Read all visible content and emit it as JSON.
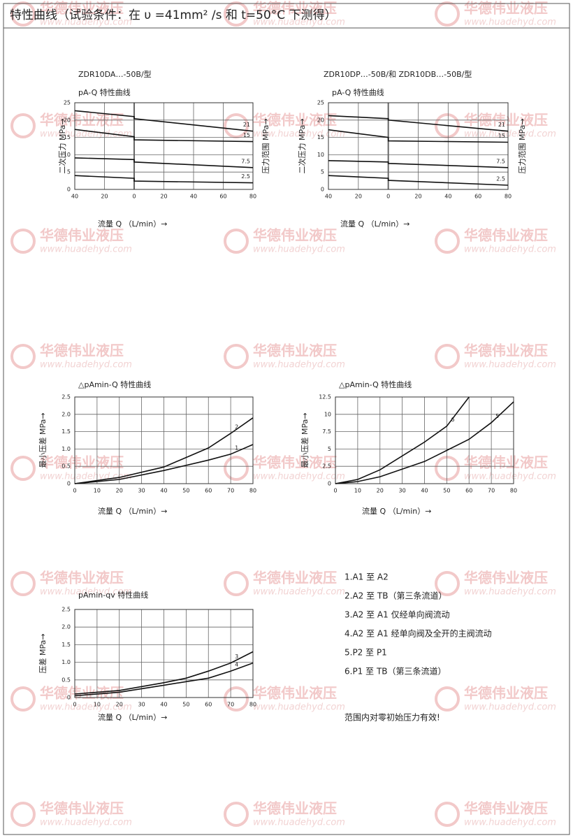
{
  "header": {
    "title": "特性曲线（试验条件：在 υ =41mm² /s 和 t=50°C 下测得）"
  },
  "watermark": {
    "brand": "华德伟业液压",
    "url": "www.huadehyd.com"
  },
  "chart_data": [
    {
      "type": "line",
      "title": "ZDR10DA…-50B/型",
      "subtitle": "pA-Q 特性曲线",
      "x_label": "流量 Q （L/min）→",
      "y_label": "二次压力 MPa→",
      "y2_label": "压力范围 MPa→",
      "x": [
        -40,
        0,
        0,
        80
      ],
      "xlim": [
        -40,
        80
      ],
      "xticks": [
        {
          "value": -40,
          "label": "40"
        },
        {
          "value": -20,
          "label": "20"
        },
        0,
        20,
        40,
        60,
        80
      ],
      "ylim": [
        0,
        25
      ],
      "yticks": [
        0,
        5,
        10,
        15,
        20,
        25
      ],
      "grid": true,
      "series": [
        {
          "name": "21",
          "color": "#111111",
          "values": [
            22.7,
            21.0,
            20.4,
            16.8
          ]
        },
        {
          "name": "15",
          "color": "#111111",
          "values": [
            17.3,
            15.2,
            14.3,
            13.8
          ]
        },
        {
          "name": "7.5",
          "color": "#111111",
          "values": [
            9.1,
            8.6,
            7.9,
            6.3
          ]
        },
        {
          "name": "2.5",
          "color": "#111111",
          "values": [
            4.0,
            3.2,
            2.4,
            1.9
          ]
        }
      ]
    },
    {
      "type": "line",
      "title": "ZDR10DP…-50B/和 ZDR10DB…-50B/型",
      "subtitle": "pA-Q 特性曲线",
      "x_label": "流量 Q （L/min）→",
      "y_label": "二次压力 MPa→",
      "y2_label": "压力范围 MPa→",
      "x": [
        -40,
        0,
        0,
        80
      ],
      "xlim": [
        -40,
        80
      ],
      "xticks": [
        {
          "value": -40,
          "label": "40"
        },
        {
          "value": -20,
          "label": "20"
        },
        0,
        20,
        40,
        60,
        80
      ],
      "ylim": [
        0,
        25
      ],
      "yticks": [
        0,
        5,
        10,
        15,
        20,
        25
      ],
      "grid": true,
      "series": [
        {
          "name": "21",
          "color": "#111111",
          "values": [
            21.3,
            20.4,
            20.0,
            16.8
          ]
        },
        {
          "name": "15",
          "color": "#111111",
          "values": [
            17.2,
            15.0,
            14.0,
            13.6
          ]
        },
        {
          "name": "7.5",
          "color": "#111111",
          "values": [
            8.3,
            7.9,
            7.5,
            6.3
          ]
        },
        {
          "name": "2.5",
          "color": "#111111",
          "values": [
            4.0,
            3.2,
            2.6,
            1.2
          ]
        }
      ]
    },
    {
      "type": "line",
      "subtitle": "△pAmin-Q 特性曲线",
      "x_label": "流量 Q （L/min）→",
      "y_label": "最小压差 MPa→",
      "x": [
        0,
        20,
        40,
        60,
        70,
        80
      ],
      "xlim": [
        0,
        80
      ],
      "xticks": [
        0,
        10,
        20,
        30,
        40,
        50,
        60,
        70,
        80
      ],
      "ylim": [
        0,
        2.5
      ],
      "yticks": [
        0,
        0.5,
        {
          "value": 1,
          "label": "1.0"
        },
        1.5,
        {
          "value": 2,
          "label": "2.0"
        },
        2.5
      ],
      "grid": true,
      "series": [
        {
          "name": "2",
          "color": "#111111",
          "values": [
            0,
            0.18,
            0.48,
            1.03,
            1.45,
            1.9
          ]
        },
        {
          "name": "1",
          "color": "#111111",
          "values": [
            0,
            0.12,
            0.38,
            0.68,
            0.85,
            1.13
          ]
        }
      ]
    },
    {
      "type": "line",
      "subtitle": "△pAmin-Q 特性曲线",
      "x_label": "流量 Q （L/min）→",
      "y_label": "最小压差 MPa→",
      "x": [
        0,
        10,
        20,
        40,
        50,
        60,
        70,
        80
      ],
      "xlim": [
        0,
        80
      ],
      "xticks": [
        0,
        10,
        20,
        30,
        40,
        50,
        60,
        70,
        80
      ],
      "ylim": [
        0,
        12.5
      ],
      "yticks": [
        0,
        2.5,
        5,
        7.5,
        10,
        12.5
      ],
      "grid": true,
      "series": [
        {
          "name": "6",
          "color": "#111111",
          "values": [
            0,
            0.6,
            2.0,
            6.0,
            8.3,
            12.5,
            null,
            null
          ]
        },
        {
          "name": "5",
          "color": "#111111",
          "values": [
            0,
            0.3,
            1.0,
            3.2,
            4.8,
            6.4,
            8.8,
            11.8
          ]
        }
      ]
    },
    {
      "type": "line",
      "subtitle": "pAmin-qv 特性曲线",
      "x_label": "流量 Q （L/min）→",
      "y_label": "压差 MPa→",
      "x": [
        0,
        20,
        40,
        50,
        60,
        70,
        80
      ],
      "xlim": [
        0,
        80
      ],
      "xticks": [
        0,
        10,
        20,
        30,
        40,
        50,
        60,
        70,
        80
      ],
      "ylim": [
        0,
        2.5
      ],
      "yticks": [
        0,
        0.5,
        {
          "value": 1,
          "label": "1.0"
        },
        1.5,
        {
          "value": 2,
          "label": "2.0"
        },
        2.5
      ],
      "grid": true,
      "series": [
        {
          "name": "3",
          "color": "#111111",
          "values": [
            0.1,
            0.2,
            0.42,
            0.55,
            0.75,
            0.98,
            1.3
          ]
        },
        {
          "name": "4",
          "color": "#111111",
          "values": [
            0.05,
            0.15,
            0.35,
            0.45,
            0.55,
            0.75,
            0.98
          ]
        }
      ]
    }
  ],
  "legend_items": [
    "1.A1 至 A2",
    "2.A2 至 TB（第三条流道）",
    "3.A2 至 A1 仅经单向阀流动",
    "4.A2 至 A1 经单向阀及全开的主阀流动",
    "5.P2 至 P1",
    "6.P1 至 TB（第三条流道）"
  ],
  "note": "范围内对零初始压力有效!"
}
